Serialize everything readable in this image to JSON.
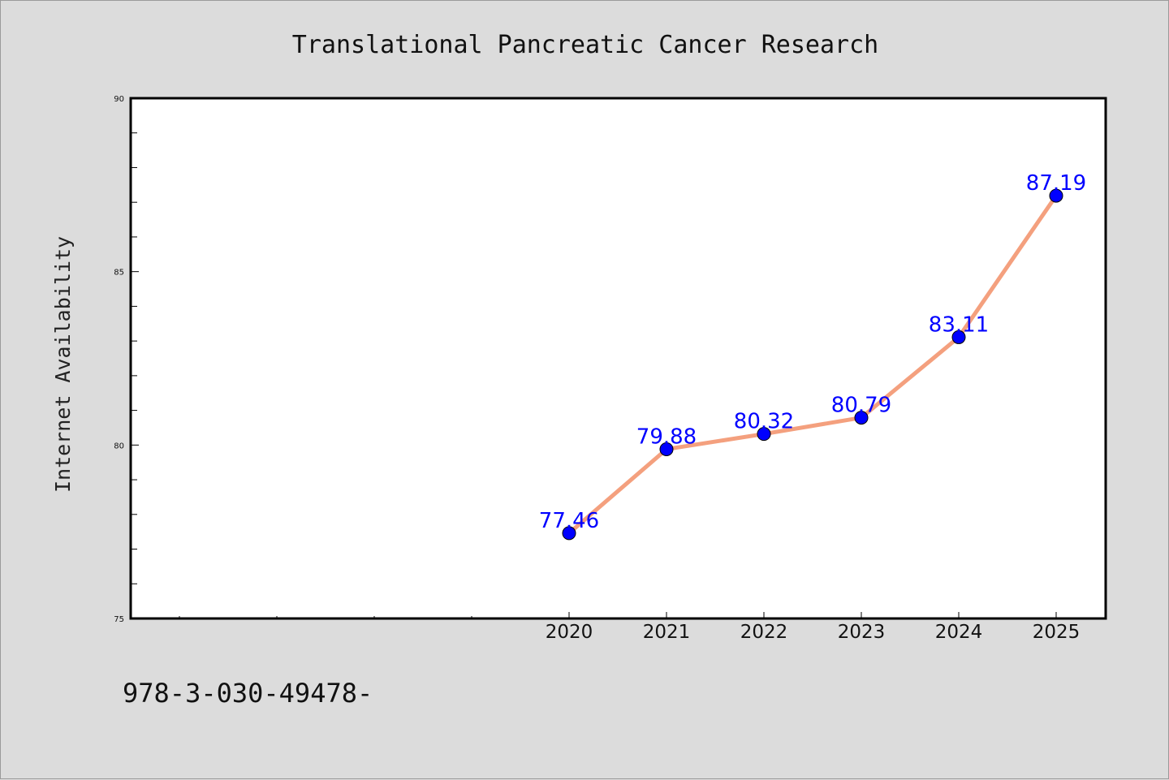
{
  "chart_data": {
    "type": "line",
    "title": "Translational Pancreatic Cancer Research",
    "xlabel": "",
    "ylabel": "Internet Availability",
    "x": [
      "2020",
      "2021",
      "2022",
      "2023",
      "2024",
      "2025"
    ],
    "series": [
      {
        "values": [
          77.46,
          79.88,
          80.32,
          80.79,
          83.11,
          87.19
        ],
        "labels": [
          "77.46",
          "79.88",
          "80.32",
          "80.79",
          "83.11",
          "87.19"
        ],
        "line_color": "#f4a07e",
        "marker_color": "#0000ff"
      }
    ],
    "ylim": [
      75,
      90
    ],
    "yticks": [
      "75",
      "80",
      "85",
      "90"
    ],
    "grid": false,
    "legend": "none"
  },
  "footer": {
    "text": "978-3-030-49478-"
  },
  "colors": {
    "background": "#dcdcdc",
    "plot_background": "#ffffff",
    "data_label": "#0000ff"
  }
}
